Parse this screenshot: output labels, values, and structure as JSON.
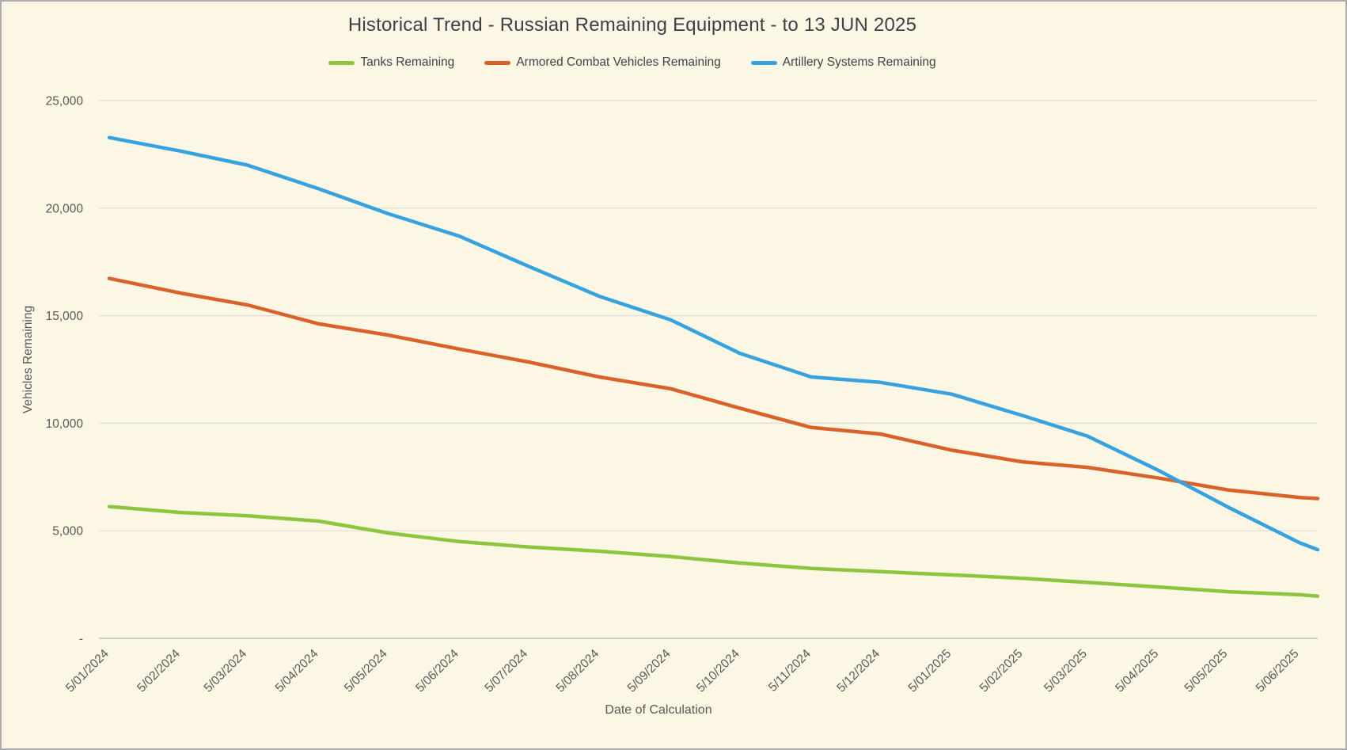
{
  "window": {
    "background": "#FCF6E4",
    "border_color": "#ADADAD",
    "gridline_color": "#DCDCDC",
    "axis_line_color": "#BFBFBF",
    "text_color": "#595959"
  },
  "chart_data": {
    "type": "line",
    "title": "Historical Trend - Russian Remaining Equipment - to 13 JUN 2025",
    "xlabel": "Date of Calculation",
    "ylabel": "Vehicles Remaining",
    "ylim": [
      0,
      25000
    ],
    "y_tick_interval": 5000,
    "y_tick_labels": [
      "-",
      "5,000",
      "10,000",
      "15,000",
      "20,000",
      "25,000"
    ],
    "x_tick_labels": [
      "5/01/2024",
      "5/02/2024",
      "5/03/2024",
      "5/04/2024",
      "5/05/2024",
      "5/06/2024",
      "5/07/2024",
      "5/08/2024",
      "5/09/2024",
      "5/10/2024",
      "5/11/2024",
      "5/12/2024",
      "5/01/2025",
      "5/02/2025",
      "5/03/2025",
      "5/04/2025",
      "5/05/2025",
      "5/06/2025"
    ],
    "x_date_format": "D/MM/YYYY",
    "grid": "horizontal",
    "legend_position": "top",
    "sampling_note": "values read from chart at each monthly tick date plus the final data point (13 JUN 2025)",
    "x_dates": [
      "5/01/2024",
      "5/02/2024",
      "5/03/2024",
      "5/04/2024",
      "5/05/2024",
      "5/06/2024",
      "5/07/2024",
      "5/08/2024",
      "5/09/2024",
      "5/10/2024",
      "5/11/2024",
      "5/12/2024",
      "5/01/2025",
      "5/02/2025",
      "5/03/2025",
      "5/04/2025",
      "5/05/2025",
      "5/06/2025",
      "13/06/2025"
    ],
    "series": [
      {
        "name": "Tanks Remaining",
        "color": "#8CC63F",
        "values": [
          6125,
          5850,
          5700,
          5450,
          4900,
          4500,
          4250,
          4050,
          3800,
          3500,
          3250,
          3100,
          2950,
          2790,
          2600,
          2385,
          2170,
          2030,
          1960
        ]
      },
      {
        "name": "Armored Combat Vehicles Remaining",
        "color": "#D9622B",
        "values": [
          16730,
          16050,
          15500,
          14620,
          14100,
          13450,
          12850,
          12150,
          11600,
          10700,
          9800,
          9500,
          8750,
          8200,
          7950,
          7450,
          6900,
          6550,
          6500
        ]
      },
      {
        "name": "Artillery Systems Remaining",
        "color": "#36A2E0",
        "values": [
          23280,
          22650,
          22000,
          20900,
          19750,
          18700,
          17300,
          15900,
          14800,
          13250,
          12150,
          11900,
          11350,
          10350,
          9400,
          7800,
          6100,
          4450,
          4120
        ]
      }
    ]
  }
}
